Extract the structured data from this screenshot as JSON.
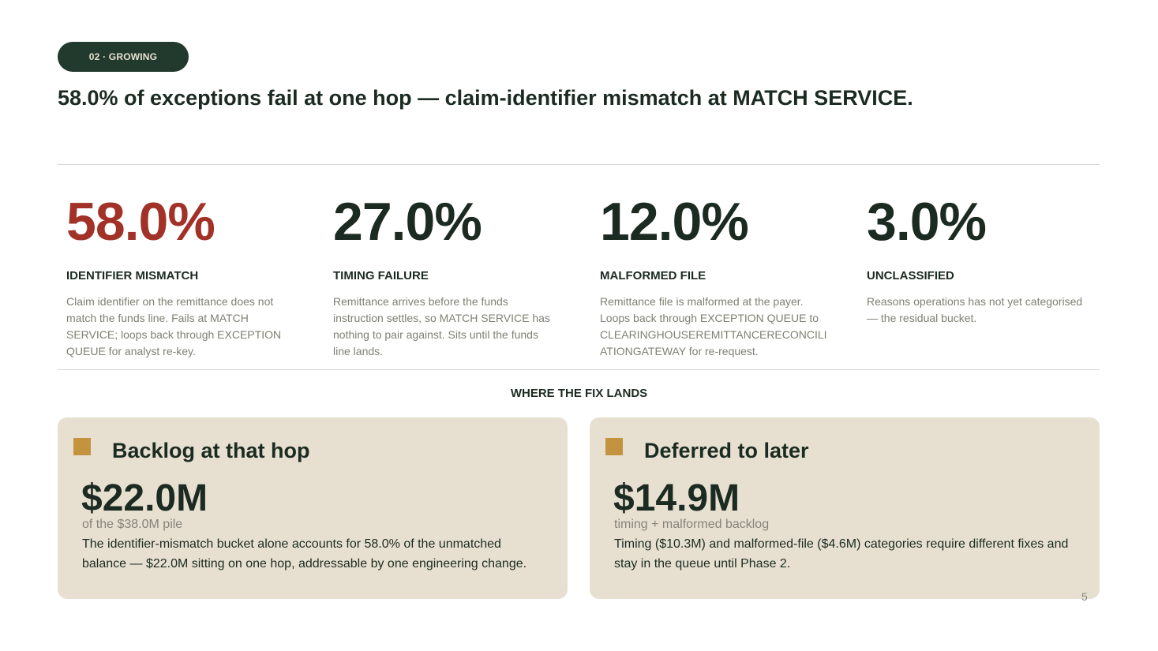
{
  "section_tag": "02 · GROWING",
  "headline": "58.0% of exceptions fail at one hop — claim-identifier mismatch at MATCH SERVICE.",
  "stats": [
    {
      "value": "58.0%",
      "label": "IDENTIFIER MISMATCH",
      "description": "Claim identifier on the remittance does not match the funds line. Fails at MATCH SERVICE; loops back through EXCEPTION QUEUE for analyst re-key.",
      "highlight": true
    },
    {
      "value": "27.0%",
      "label": "TIMING FAILURE",
      "description": "Remittance arrives before the funds instruction settles, so MATCH SERVICE has nothing to pair against. Sits until the funds line lands.",
      "highlight": false
    },
    {
      "value": "12.0%",
      "label": "MALFORMED FILE",
      "description": "Remittance file is malformed at the payer. Loops back through EXCEPTION QUEUE to CLEARINGHOUSEREMITTANCERECONCILIATIONGATEWAY for re-request.",
      "highlight": false
    },
    {
      "value": "3.0%",
      "label": "UNCLASSIFIED",
      "description": "Reasons operations has not yet categorised — the residual bucket.",
      "highlight": false
    }
  ],
  "fix_section_label": "WHERE THE FIX LANDS",
  "cards": [
    {
      "title": "Backlog at that hop",
      "amount": "$22.0M",
      "subtitle": "of the $38.0M pile",
      "body": "The identifier-mismatch bucket alone accounts for 58.0% of the unmatched balance — $22.0M sitting on one hop, addressable by one engineering change."
    },
    {
      "title": "Deferred to later",
      "amount": "$14.9M",
      "subtitle": "timing + malformed backlog",
      "body": "Timing ($10.3M) and malformed-file ($4.6M) categories require different fixes and stay in the queue until Phase 2."
    }
  ],
  "page_number": "5",
  "colors": {
    "accent_dark": "#22392e",
    "alert_red": "#a23127",
    "card_bg": "#e7e0d0",
    "marker_gold": "#c49340"
  }
}
